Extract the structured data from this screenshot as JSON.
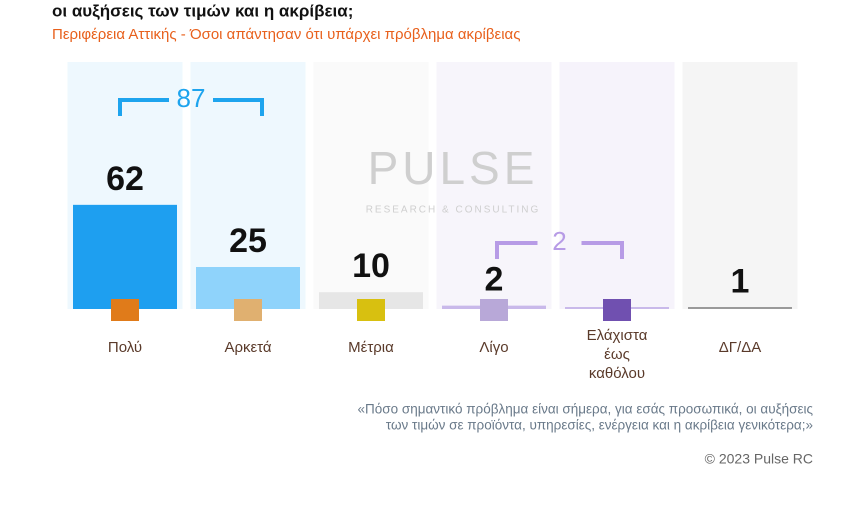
{
  "chart_data": {
    "type": "bar",
    "title": "οι αυξήσεις των τιμών και η ακρίβεια;",
    "subtitle": "Περιφέρεια Αττικής - Όσοι απάντησαν ότι υπάρχει πρόβλημα ακρίβειας",
    "categories": [
      "Πολύ",
      "Αρκετά",
      "Μέτρια",
      "Λίγο",
      "Ελάχιστα έως καθόλου",
      "ΔΓ/ΔΑ"
    ],
    "values": [
      62,
      25,
      10,
      2,
      0,
      1
    ],
    "value_labels": [
      "62",
      "25",
      "10",
      "2",
      null,
      "1"
    ],
    "colors": [
      "#1e9ff0",
      "#8fd3fb",
      "#e6e6e6",
      "#c9b9ea",
      "#c9b9ea",
      "#9a9a9a"
    ],
    "annotations": [
      {
        "text": "87",
        "color": "#1ea4ee"
      },
      {
        "text": "2",
        "color": "#b79be6"
      }
    ],
    "watermark": [
      "PULSE",
      "RESEARCH & CONSULTING"
    ],
    "footnote": [
      "«Πόσο σημαντικό πρόβλημα είναι σήμερα, για εσάς προσωπικά, οι αυξήσεις",
      "των τιμών σε προϊόντα, υπηρεσίες, ενέργεια και η ακρίβεια γενικότερα;»"
    ],
    "copyright": "© 2023 Pulse RC"
  }
}
